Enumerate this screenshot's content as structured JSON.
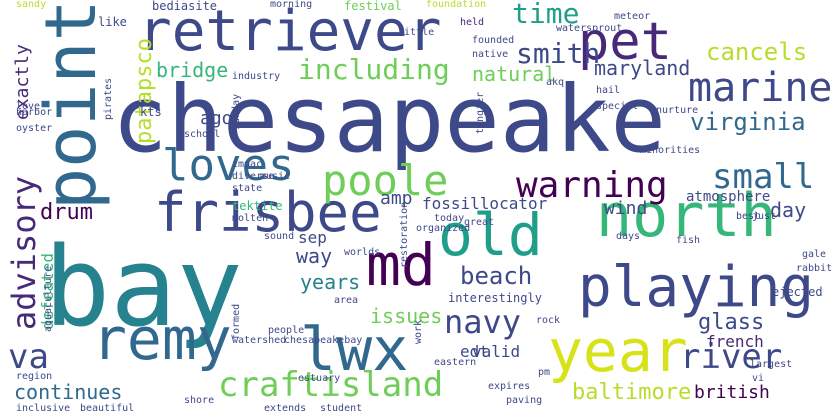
{
  "colors": {
    "c1": "#440154",
    "c2": "#482878",
    "c3": "#3e4989",
    "c4": "#31688e",
    "c5": "#26828e",
    "c6": "#1f9e89",
    "c7": "#35b779",
    "c8": "#6ece58",
    "c9": "#b5de2b",
    "c10": "#d8e219"
  },
  "words": [
    "chesapeake",
    "bay",
    "retriever",
    "pet",
    "point",
    "loves",
    "frisbee",
    "north",
    "old",
    "md",
    "playing",
    "year",
    "remy",
    "lwx",
    "craftisland",
    "poole",
    "warning",
    "marine",
    "small",
    "advisory",
    "navy",
    "river",
    "va",
    "including",
    "smith",
    "time",
    "virginia",
    "maryland",
    "cancels",
    "bridge",
    "natural",
    "patapsco",
    "drum",
    "amp",
    "fossillocator",
    "wind",
    "day",
    "atmosphere",
    "beach",
    "glass",
    "french",
    "british",
    "baltimore",
    "continues",
    "valid",
    "edt",
    "issues",
    "years",
    "way",
    "sep",
    "ago",
    "tektite",
    "defeated",
    "exactly",
    "kts",
    "festival",
    "foundation",
    "morning",
    "held",
    "bediasite",
    "sandy",
    "like",
    "watershed",
    "chesapeakebay",
    "interestingly",
    "shore",
    "estuary",
    "people",
    "area",
    "eastern",
    "vi",
    "largest",
    "ejected",
    "gale",
    "rabbit",
    "fish",
    "days",
    "today",
    "pm",
    "minorities",
    "special",
    "nurture",
    "hail",
    "akq",
    "meteor",
    "watersprout",
    "founded",
    "native",
    "industry",
    "pirates",
    "harbor",
    "oyster",
    "love",
    "impac",
    "diverse",
    "music",
    "state",
    "molten",
    "sound",
    "aquaculture",
    "region",
    "inclusive",
    "beautiful",
    "extends",
    "student",
    "expires",
    "formed",
    "worlds",
    "organized",
    "just",
    "best",
    "sunday",
    "school",
    "little",
    "tangier",
    "restoration",
    "great",
    "paving",
    "rock",
    "work"
  ]
}
